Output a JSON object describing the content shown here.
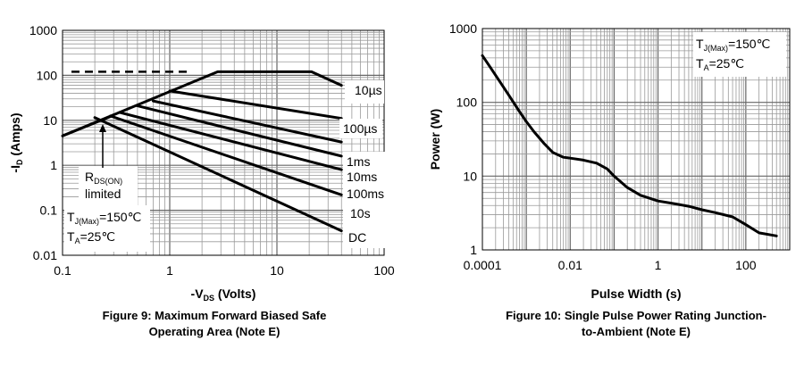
{
  "chart_data": [
    {
      "type": "line",
      "title": "",
      "xscale": "log",
      "yscale": "log",
      "xlim": [
        0.1,
        100
      ],
      "ylim": [
        0.01,
        1000
      ],
      "x_ticks": [
        "0.1",
        "1",
        "10",
        "100"
      ],
      "y_ticks": [
        "0.01",
        "0.1",
        "1",
        "10",
        "100",
        "1000"
      ],
      "xlabel": {
        "pre": "-V",
        "sub": "DS",
        "post": " (Volts)"
      },
      "ylabel": {
        "pre": "-I",
        "sub": "D",
        "post": " (Amps)"
      },
      "caption": [
        "Figure 9: Maximum Forward Biased Safe",
        "Operating Area (Note E)"
      ],
      "limit_line": {
        "y": 120,
        "x": [
          0.1,
          1.5
        ]
      },
      "series": [
        {
          "name": "10µs",
          "x": [
            0.1,
            2.8,
            21,
            40
          ],
          "y": [
            4.5,
            120,
            120,
            60
          ]
        },
        {
          "name": "100µs",
          "x": [
            1.0,
            40
          ],
          "y": [
            45,
            11
          ]
        },
        {
          "name": "1ms",
          "x": [
            0.7,
            40
          ],
          "y": [
            27,
            3.3
          ]
        },
        {
          "name": "10ms",
          "x": [
            0.5,
            40
          ],
          "y": [
            21,
            1.6
          ]
        },
        {
          "name": "100ms",
          "x": [
            0.34,
            40
          ],
          "y": [
            15,
            0.8
          ]
        },
        {
          "name": "10s",
          "x": [
            0.28,
            40
          ],
          "y": [
            12.5,
            0.22
          ]
        },
        {
          "name": "DC",
          "x": [
            0.2,
            40
          ],
          "y": [
            11.5,
            0.035
          ]
        }
      ],
      "rds_line": {
        "x": [
          0.1,
          0.3
        ],
        "y": [
          4.5,
          13
        ]
      },
      "annotations": {
        "rds": {
          "pre": "R",
          "sub": "DS(ON)",
          "post": ""
        },
        "rds2": "limited",
        "tj": {
          "pre": "T",
          "sub": "J(Max)",
          "post": "=150℃"
        },
        "ta": {
          "pre": "T",
          "sub": "A",
          "post": "=25℃"
        }
      }
    },
    {
      "type": "line",
      "title": "",
      "xscale": "log",
      "yscale": "log",
      "xlim": [
        0.0001,
        1000
      ],
      "ylim": [
        1,
        1000
      ],
      "x_ticks": [
        "0.0001",
        "0.01",
        "1",
        "100"
      ],
      "y_ticks": [
        "1",
        "10",
        "100",
        "1000"
      ],
      "xlabel": "Pulse Width (s)",
      "ylabel": "Power (W)",
      "caption": [
        "Figure 10: Single Pulse Power Rating Junction-",
        "to-Ambient (Note E)"
      ],
      "series": [
        {
          "x": [
            0.0001,
            0.00015,
            0.00025,
            0.0004,
            0.0007,
            0.001,
            0.0015,
            0.0025,
            0.004,
            0.007,
            0.01,
            0.02,
            0.04,
            0.07,
            0.1,
            0.2,
            0.4,
            1,
            2,
            5,
            10,
            20,
            50,
            100,
            200,
            500
          ],
          "y": [
            430,
            300,
            190,
            125,
            75,
            55,
            40,
            28,
            21,
            18,
            17.5,
            16.5,
            15,
            12.5,
            10,
            7,
            5.5,
            4.6,
            4.3,
            3.9,
            3.5,
            3.2,
            2.8,
            2.2,
            1.7,
            1.55
          ]
        }
      ],
      "annotations": {
        "tj": {
          "pre": "T",
          "sub": "J(Max)",
          "post": "=150℃"
        },
        "ta": {
          "pre": "T",
          "sub": "A",
          "post": "=25℃"
        }
      }
    }
  ]
}
